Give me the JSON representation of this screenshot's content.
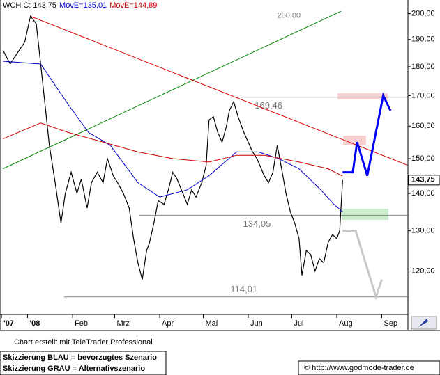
{
  "chart_data": {
    "type": "line",
    "header": [
      {
        "text": "WCH C: 143,75",
        "color": "#000000"
      },
      {
        "text": "MovE=135,01",
        "color": "#0000cc"
      },
      {
        "text": "MovE=144,89",
        "color": "#cc0000"
      }
    ],
    "log_scale": true,
    "xlim": [
      -18,
      263
    ],
    "ylim": [
      110.4,
      205.5
    ],
    "xticks": [
      {
        "value": -17,
        "label": "'07"
      },
      {
        "value": 1,
        "label": "'08"
      },
      {
        "value": 32,
        "label": "Feb"
      },
      {
        "value": 61,
        "label": "Mrz"
      },
      {
        "value": 92,
        "label": "Apr"
      },
      {
        "value": 122,
        "label": "Mai"
      },
      {
        "value": 153,
        "label": "Jun"
      },
      {
        "value": 183,
        "label": "Jul"
      },
      {
        "value": 214,
        "label": "Aug"
      },
      {
        "value": 245,
        "label": "Sep"
      }
    ],
    "yticks": [
      {
        "value": 120,
        "label": "120,00"
      },
      {
        "value": 130,
        "label": "130,00"
      },
      {
        "value": 140,
        "label": "140,00"
      },
      {
        "value": 150,
        "label": "150,00"
      },
      {
        "value": 160,
        "label": "160,00"
      },
      {
        "value": 170,
        "label": "170,00"
      },
      {
        "value": 180,
        "label": "180,00"
      },
      {
        "value": 190,
        "label": "190,00"
      },
      {
        "value": 200,
        "label": "200,00"
      }
    ],
    "last_price": {
      "value": 143.75,
      "label": "143,75"
    },
    "series": [
      {
        "color": "#000000",
        "x": [
          -16,
          -11,
          -6,
          -1,
          3,
          7,
          10,
          13,
          16,
          20,
          24,
          27,
          31,
          35,
          38,
          42,
          45,
          49,
          53,
          56,
          60,
          63,
          67,
          71,
          74,
          77,
          80,
          83,
          85,
          88,
          91,
          95,
          98,
          101,
          104,
          108,
          111,
          114,
          117,
          121,
          124,
          126,
          129,
          132,
          135,
          138,
          140,
          143,
          146,
          150,
          153,
          156,
          159,
          162,
          164,
          167,
          170,
          173,
          176,
          179,
          182,
          185,
          188,
          190,
          193,
          196,
          199,
          202,
          205,
          208,
          211,
          214,
          216,
          218
        ],
        "values": [
          186,
          181,
          185,
          189,
          199,
          196,
          181,
          167,
          154,
          143,
          132,
          140,
          146,
          140,
          144,
          136,
          143,
          146,
          143,
          150,
          145,
          143,
          140,
          136,
          128,
          122,
          118,
          125,
          127,
          132,
          138,
          137,
          141,
          146,
          144,
          140,
          137,
          141,
          139,
          143,
          148,
          162,
          163,
          158,
          155,
          160,
          165,
          168,
          163,
          158,
          155,
          152,
          150,
          147,
          145,
          143,
          146,
          154,
          147,
          140,
          135,
          132,
          128,
          119,
          125,
          124,
          120,
          123,
          122,
          127,
          129,
          128,
          130,
          143.75
        ]
      },
      {
        "color": "#0000cc",
        "x": [
          -16,
          10,
          29,
          43,
          58,
          77,
          92,
          111,
          126,
          145,
          160,
          174,
          188,
          203,
          212,
          218
        ],
        "values": [
          182,
          181,
          167,
          158,
          154,
          143,
          139,
          141,
          145,
          152,
          152,
          150,
          147,
          141,
          137,
          135.01
        ]
      },
      {
        "color": "#cc0000",
        "x": [
          -16,
          10,
          29,
          53,
          77,
          101,
          126,
          145,
          164,
          188,
          208,
          218
        ],
        "values": [
          156,
          161,
          158,
          155,
          152,
          150,
          149,
          151,
          151,
          149,
          147,
          144.89
        ]
      }
    ],
    "trendlines": [
      {
        "color": "#008800",
        "x": [
          -16,
          217
        ],
        "values": [
          147,
          201
        ]
      },
      {
        "color": "#dd0000",
        "x": [
          3,
          263
        ],
        "values": [
          199,
          148
        ]
      }
    ],
    "levels": [
      {
        "value": 169.46,
        "label": "169,46",
        "x": [
          143,
          263
        ],
        "label_x": 167
      },
      {
        "value": 134.05,
        "label": "134,05",
        "x": [
          78,
          263
        ],
        "label_x": 159
      },
      {
        "value": 114.01,
        "label": "114,01",
        "x": [
          26,
          263
        ],
        "label_x": 150
      }
    ],
    "annotations": [
      {
        "value": 200,
        "label": "200,00",
        "x": 181
      }
    ],
    "scenarios": [
      {
        "color": "#0000ff",
        "x": [
          218,
          225,
          228,
          235,
          246,
          251
        ],
        "values": [
          146,
          146,
          155,
          145,
          170,
          165
        ]
      },
      {
        "color": "#c8c8c8",
        "x": [
          218,
          227,
          241,
          245
        ],
        "values": [
          130,
          130,
          114,
          118
        ]
      }
    ]
  },
  "footer": {
    "credit": "Chart erstellt mit TeleTrader Professional",
    "legend": [
      "Skizzierung BLAU = bevorzugtes Szenario",
      "Skizzierung GRAU = Alternativszenario"
    ],
    "source": "© http://www.godmode-trader.de"
  }
}
